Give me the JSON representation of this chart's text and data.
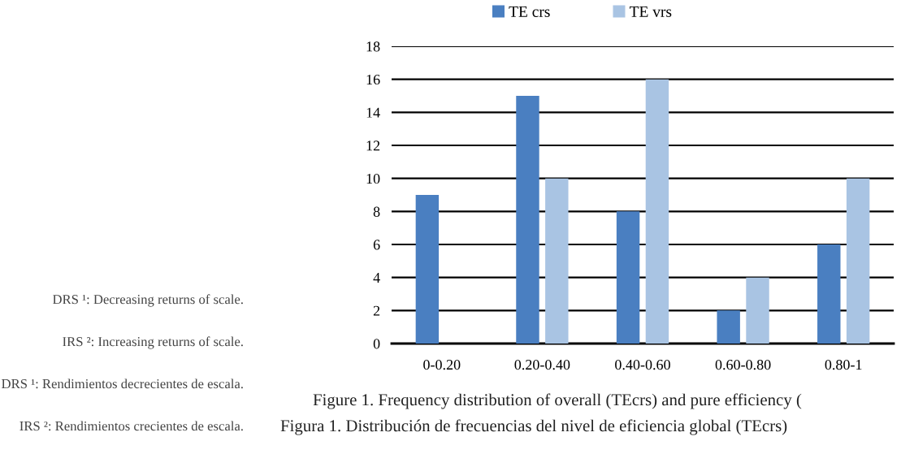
{
  "chart_data": {
    "type": "bar",
    "categories": [
      "0-0.20",
      "0.20-0.40",
      "0.40-0.60",
      "0.60-0.80",
      "0.80-1"
    ],
    "series": [
      {
        "name": "TE crs",
        "color": "#4a7fc1",
        "values": [
          9,
          15,
          8,
          2,
          6
        ]
      },
      {
        "name": "TE vrs",
        "color": "#a9c4e3",
        "values": [
          null,
          10,
          16,
          4,
          10
        ]
      }
    ],
    "ylim": [
      0,
      18
    ],
    "yticks": [
      0,
      2,
      4,
      6,
      8,
      10,
      12,
      14,
      16,
      18
    ],
    "grid": "y",
    "legend": "top",
    "annotations": [
      "DRS ¹: Decreasing returns of scale.",
      "IRS ²: Increasing returns of scale.",
      "DRS ¹: Rendimientos decrecientes de escala.",
      "IRS ²: Rendimientos crecientes de escala.",
      "Figure 1. Frequency distribution of overall (TEcrs) and pure efficiency (",
      "Figura 1. Distribución de frecuencias del nivel de eficiencia global (TEcrs)"
    ]
  }
}
